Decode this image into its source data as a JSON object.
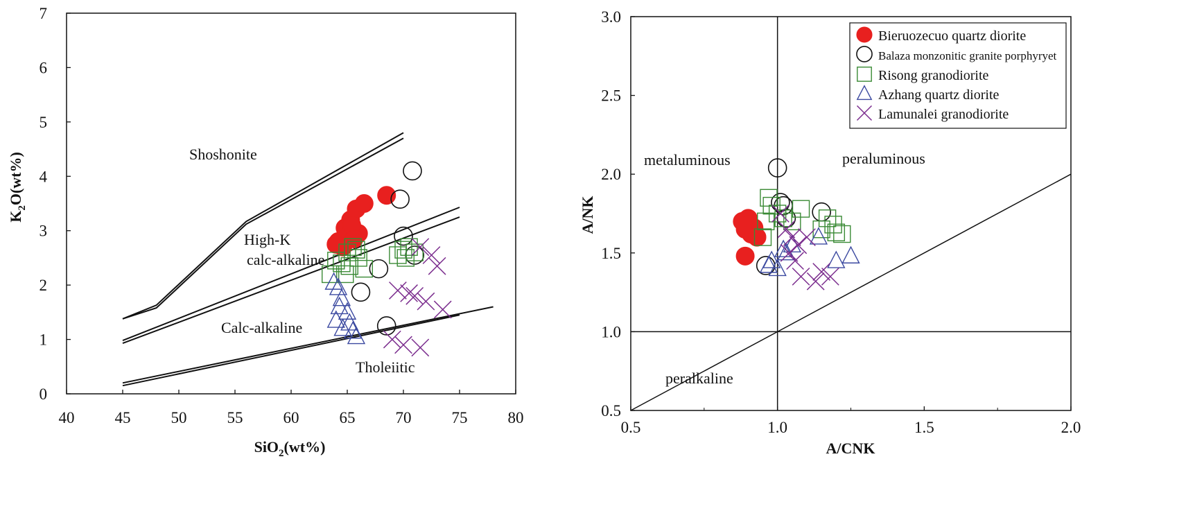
{
  "chart_data": [
    {
      "type": "scatter",
      "title": "",
      "xlabel": "SiO2(wt%)",
      "xlabel_main": "SiO",
      "xlabel_sub": "2",
      "xlabel_tail": "(wt%)",
      "ylabel": "K2O(wt%)",
      "ylabel_main": "K",
      "ylabel_sub": "2",
      "ylabel_tail": "O(wt%)",
      "xlim": [
        40,
        80
      ],
      "ylim": [
        0,
        7
      ],
      "xticks": [
        "40",
        "45",
        "50",
        "55",
        "60",
        "65",
        "70",
        "75",
        "80"
      ],
      "yticks": [
        "0",
        "1",
        "2",
        "3",
        "4",
        "5",
        "6",
        "7"
      ],
      "grid": false,
      "region_labels": [
        "Shoshonite",
        "High-K",
        "calc-alkaline",
        "Calc-alkaline",
        "Tholeiitic"
      ],
      "boundaries": [
        [
          [
            45,
            1.38
          ],
          [
            48,
            1.63
          ],
          [
            56,
            3.17
          ],
          [
            70,
            4.8
          ]
        ],
        [
          [
            45,
            1.38
          ],
          [
            48,
            1.58
          ],
          [
            56,
            3.12
          ],
          [
            70,
            4.7
          ]
        ],
        [
          [
            45,
            0.98
          ],
          [
            75,
            3.43
          ]
        ],
        [
          [
            45,
            0.93
          ],
          [
            75,
            3.25
          ]
        ],
        [
          [
            45,
            0.2
          ],
          [
            78,
            1.6
          ]
        ],
        [
          [
            45,
            0.15
          ],
          [
            75,
            1.45
          ]
        ]
      ],
      "series": [
        {
          "name": "Bieruozecuo quartz diorite",
          "marker": "filled-circle",
          "color": "#e8201f",
          "x": [
            64.2,
            64.8,
            65.3,
            65.8,
            66.5,
            65.0,
            66.0,
            64.6,
            65.4,
            68.5,
            64.0,
            65.6
          ],
          "y": [
            2.8,
            3.05,
            3.2,
            3.4,
            3.5,
            2.9,
            2.95,
            2.7,
            3.1,
            3.65,
            2.75,
            2.85
          ]
        },
        {
          "name": "Balaza monzonitic granite porphyryet",
          "marker": "open-circle",
          "color": "#111111",
          "x": [
            70.8,
            69.7,
            70.0,
            71.0,
            67.8,
            66.2,
            68.5
          ],
          "y": [
            4.1,
            3.58,
            2.9,
            2.55,
            2.3,
            1.87,
            1.25
          ]
        },
        {
          "name": "Risong granodiorite",
          "marker": "open-square",
          "color": "#3a8a35",
          "x": [
            63.5,
            64.5,
            65.0,
            65.5,
            66.0,
            66.5,
            64.8,
            65.8,
            69.5,
            70.0,
            70.5,
            71.0,
            70.2,
            64.0,
            65.2
          ],
          "y": [
            2.2,
            2.4,
            2.6,
            2.7,
            2.5,
            2.3,
            2.2,
            2.65,
            2.55,
            2.65,
            2.7,
            2.6,
            2.5,
            2.45,
            2.35
          ]
        },
        {
          "name": "Azhang quartz diorite",
          "marker": "open-triangle",
          "color": "#3b49a0",
          "x": [
            63.8,
            64.2,
            64.5,
            65.0,
            64.0,
            64.6,
            65.2,
            65.5,
            65.8,
            64.3
          ],
          "y": [
            2.05,
            1.95,
            1.75,
            1.5,
            1.35,
            1.2,
            1.3,
            1.15,
            1.05,
            1.6
          ]
        },
        {
          "name": "Lamunalei granodiorite",
          "marker": "cross",
          "color": "#7b2d8e",
          "x": [
            71.5,
            72.5,
            73.0,
            69.5,
            70.5,
            71.0,
            72.0,
            73.5,
            69.0,
            70.0,
            71.5
          ],
          "y": [
            2.7,
            2.55,
            2.35,
            1.9,
            1.85,
            1.8,
            1.7,
            1.55,
            1.0,
            0.9,
            0.85
          ]
        }
      ]
    },
    {
      "type": "scatter",
      "title": "",
      "xlabel": "A/CNK",
      "ylabel": "A/NK",
      "xlim": [
        0.5,
        2.0
      ],
      "ylim": [
        0.5,
        3.0
      ],
      "xticks": [
        "0.5",
        "1.0",
        "1.5",
        "2.0"
      ],
      "yticks": [
        "0.5",
        "1.0",
        "1.5",
        "2.0",
        "2.5",
        "3.0"
      ],
      "grid": false,
      "region_labels": [
        "metaluminous",
        "peraluminous",
        "peralkaline"
      ],
      "reference_lines": {
        "vertical": 1.0,
        "horizontal": 1.0,
        "diagonal": [
          [
            0.5,
            0.5
          ],
          [
            2.0,
            2.0
          ]
        ]
      },
      "legend_position": "top-right",
      "legend": [
        "Bieruozecuo quartz diorite",
        "Balaza monzonitic granite porphyryet",
        "Risong granodiorite",
        "Azhang quartz diorite",
        "Lamunalei granodiorite"
      ],
      "series": [
        {
          "name": "Bieruozecuo quartz diorite",
          "marker": "filled-circle",
          "color": "#e8201f",
          "x": [
            0.88,
            0.9,
            0.92,
            0.89,
            0.91,
            0.93,
            0.9,
            0.89
          ],
          "y": [
            1.7,
            1.72,
            1.66,
            1.65,
            1.62,
            1.6,
            1.68,
            1.48
          ]
        },
        {
          "name": "Balaza monzonitic granite porphyryet",
          "marker": "open-circle",
          "color": "#111111",
          "x": [
            1.0,
            1.01,
            1.02,
            1.03,
            1.15,
            0.96
          ],
          "y": [
            2.04,
            1.82,
            1.8,
            1.72,
            1.76,
            1.42
          ]
        },
        {
          "name": "Risong granodiorite",
          "marker": "open-square",
          "color": "#3a8a35",
          "x": [
            0.97,
            0.98,
            1.0,
            1.02,
            1.05,
            1.08,
            1.17,
            1.19,
            1.2,
            1.22,
            0.96,
            0.95,
            1.15
          ],
          "y": [
            1.85,
            1.8,
            1.75,
            1.72,
            1.7,
            1.78,
            1.72,
            1.68,
            1.63,
            1.62,
            1.7,
            1.6,
            1.65
          ]
        },
        {
          "name": "Azhang quartz diorite",
          "marker": "open-triangle",
          "color": "#3b49a0",
          "x": [
            0.98,
            1.0,
            1.02,
            1.05,
            1.14,
            1.2,
            1.25,
            0.97,
            1.03
          ],
          "y": [
            1.45,
            1.4,
            1.52,
            1.55,
            1.6,
            1.45,
            1.48,
            1.42,
            1.5
          ]
        },
        {
          "name": "Lamunalei granodiorite",
          "marker": "cross",
          "color": "#7b2d8e",
          "x": [
            1.01,
            1.03,
            1.05,
            1.07,
            1.1,
            1.08,
            1.13,
            1.15,
            1.18,
            1.04,
            1.06
          ],
          "y": [
            1.75,
            1.65,
            1.6,
            1.55,
            1.6,
            1.35,
            1.32,
            1.38,
            1.35,
            1.5,
            1.45
          ]
        }
      ]
    }
  ]
}
